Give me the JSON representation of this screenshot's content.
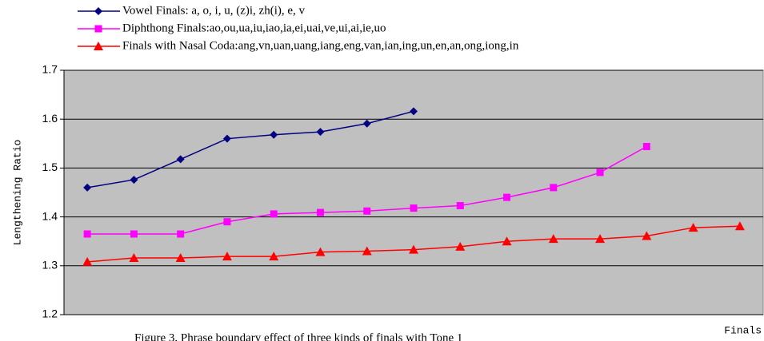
{
  "chart_data": {
    "type": "line",
    "categories": [
      null,
      null,
      null,
      null,
      null,
      null,
      null,
      null,
      null,
      null,
      null,
      null,
      null,
      null,
      null
    ],
    "series": [
      {
        "name": "Vowel Finals: a, o, i, u, (z)i, zh(i), e, v",
        "color": "#000080",
        "marker": "diamond",
        "values": [
          1.46,
          1.476,
          1.518,
          1.56,
          1.568,
          1.574,
          1.591,
          1.616,
          null,
          null,
          null,
          null,
          null,
          null,
          null
        ]
      },
      {
        "name": "Diphthong Finals:ao,ou,ua,iu,iao,ia,ei,uai,ve,ui,ai,ie,uo",
        "color": "#ff00ff",
        "marker": "square",
        "values": [
          1.365,
          1.365,
          1.365,
          1.39,
          1.406,
          1.409,
          1.412,
          1.418,
          1.423,
          1.44,
          1.46,
          1.491,
          1.544,
          null,
          null
        ]
      },
      {
        "name": "Finals with Nasal Coda:ang,vn,uan,uang,iang,eng,van,ian,ing,un,en,an,ong,iong,in",
        "color": "#ff0000",
        "marker": "triangle",
        "values": [
          1.308,
          1.316,
          1.316,
          1.319,
          1.319,
          1.328,
          1.33,
          1.333,
          1.339,
          1.35,
          1.355,
          1.355,
          1.361,
          1.378,
          1.381
        ]
      }
    ],
    "ylim": [
      1.2,
      1.7
    ],
    "yticks": [
      1.2,
      1.3,
      1.4,
      1.5,
      1.6,
      1.7
    ],
    "grid": true,
    "y_label": "Lengthening Ratio",
    "x_label": "Finals",
    "caption": "Figure 3. Phrase boundary effect of three kinds of finals with Tone 1",
    "legend": "top"
  }
}
